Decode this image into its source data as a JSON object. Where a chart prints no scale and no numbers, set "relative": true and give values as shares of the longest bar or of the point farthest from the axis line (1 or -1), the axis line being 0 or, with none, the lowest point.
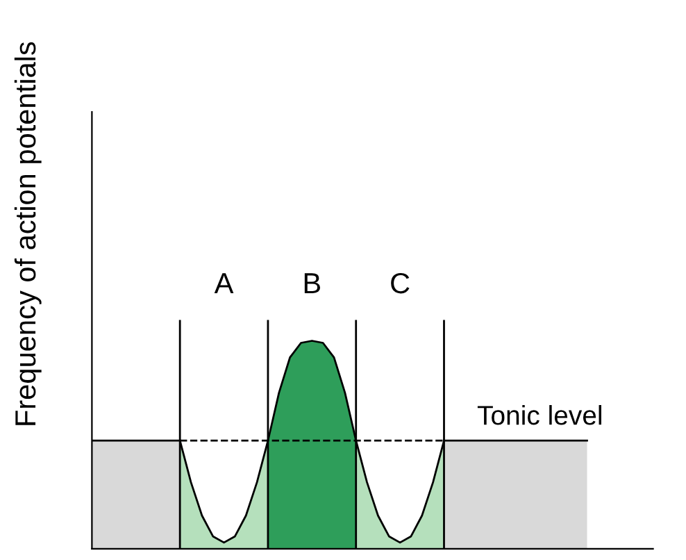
{
  "chart_data": {
    "type": "area",
    "relative": true,
    "ylabel": "Frequency of action potentials",
    "categories": [
      null,
      null,
      null,
      null,
      null,
      null,
      null,
      null,
      null,
      null,
      null,
      null,
      null,
      null,
      null,
      null,
      null,
      null,
      null,
      null,
      null,
      null,
      null,
      null,
      null,
      null,
      null,
      null,
      null,
      null,
      null,
      null,
      null,
      null,
      null,
      null,
      null,
      null,
      null,
      null,
      null,
      null,
      null,
      null,
      null,
      null,
      null,
      null,
      null,
      null,
      null,
      null
    ],
    "series": [
      {
        "color": "#d9d9d9",
        "values": [
          0.52,
          0.52,
          0.52,
          0.52,
          0.52,
          0.52,
          0.52,
          0.52,
          0.52,
          null,
          null,
          null,
          null,
          null,
          null,
          null,
          null,
          null,
          null,
          null,
          null,
          null,
          null,
          null,
          null,
          null,
          null,
          null,
          null,
          null,
          null,
          null,
          null,
          null,
          null,
          null,
          null,
          null,
          null,
          null,
          null,
          null,
          null,
          null,
          null,
          null,
          null,
          null,
          null,
          null,
          null,
          null
        ]
      },
      {
        "color": "#b5e0bc",
        "values": [
          null,
          null,
          null,
          null,
          null,
          null,
          null,
          null,
          0.52,
          0.32,
          0.16,
          0.06,
          0.03,
          0.06,
          0.16,
          0.32,
          0.52,
          null,
          null,
          null,
          null,
          null,
          null,
          null,
          null,
          null,
          null,
          null,
          null,
          null,
          null,
          null,
          null,
          null,
          null,
          null,
          null,
          null,
          null,
          null,
          null,
          null,
          null,
          null,
          null,
          null,
          null,
          null,
          null,
          null,
          null,
          null
        ]
      },
      {
        "color": "#2e9e5a",
        "values": [
          null,
          null,
          null,
          null,
          null,
          null,
          null,
          null,
          null,
          null,
          null,
          null,
          null,
          null,
          null,
          null,
          0.52,
          0.75,
          0.92,
          0.99,
          1.0,
          0.99,
          0.92,
          0.75,
          0.52,
          null,
          null,
          null,
          null,
          null,
          null,
          null,
          null,
          null,
          null,
          null,
          null,
          null,
          null,
          null,
          null,
          null,
          null,
          null,
          null,
          null,
          null,
          null,
          null,
          null,
          null,
          null
        ]
      },
      {
        "color": "#b5e0bc",
        "values": [
          null,
          null,
          null,
          null,
          null,
          null,
          null,
          null,
          null,
          null,
          null,
          null,
          null,
          null,
          null,
          null,
          null,
          null,
          null,
          null,
          null,
          null,
          null,
          null,
          0.52,
          0.32,
          0.16,
          0.06,
          0.03,
          0.06,
          0.16,
          0.32,
          0.52,
          null,
          null,
          null,
          null,
          null,
          null,
          null,
          null,
          null,
          null,
          null,
          null,
          null,
          null,
          null,
          null,
          null,
          null,
          null
        ]
      },
      {
        "color": "#d9d9d9",
        "values": [
          null,
          null,
          null,
          null,
          null,
          null,
          null,
          null,
          null,
          null,
          null,
          null,
          null,
          null,
          null,
          null,
          null,
          null,
          null,
          null,
          null,
          null,
          null,
          null,
          null,
          null,
          null,
          null,
          null,
          null,
          null,
          null,
          0.52,
          0.52,
          0.52,
          0.52,
          0.52,
          0.52,
          0.52,
          0.52,
          0.52,
          0.52,
          0.52,
          0.52,
          0.52,
          0.52,
          null,
          null,
          null,
          null,
          null,
          null
        ]
      }
    ],
    "annotations": [
      "A",
      "B",
      "C"
    ],
    "grid": "x",
    "ref_lines": [
      {
        "axis": "y",
        "value": 0.52,
        "label": "Tonic level",
        "line_style": "dashed"
      }
    ]
  }
}
